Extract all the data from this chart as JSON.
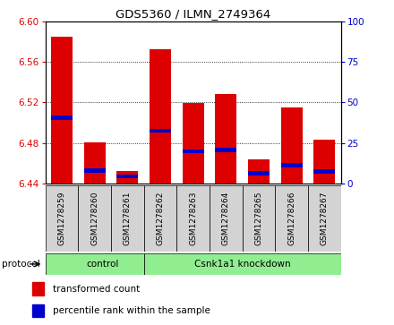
{
  "title": "GDS5360 / ILMN_2749364",
  "samples": [
    "GSM1278259",
    "GSM1278260",
    "GSM1278261",
    "GSM1278262",
    "GSM1278263",
    "GSM1278264",
    "GSM1278265",
    "GSM1278266",
    "GSM1278267"
  ],
  "transformed_counts": [
    6.585,
    6.481,
    6.452,
    6.572,
    6.519,
    6.528,
    6.464,
    6.515,
    6.483
  ],
  "percentile_ranks": [
    6.505,
    6.453,
    6.447,
    6.492,
    6.472,
    6.473,
    6.45,
    6.458,
    6.452
  ],
  "base_value": 6.44,
  "ylim_left": [
    6.44,
    6.6
  ],
  "ylim_right": [
    0,
    100
  ],
  "yticks_left": [
    6.44,
    6.48,
    6.52,
    6.56,
    6.6
  ],
  "yticks_right": [
    0,
    25,
    50,
    75,
    100
  ],
  "bar_color": "#dd0000",
  "pct_color": "#0000cc",
  "background_plot": "#ffffff",
  "background_label": "#d3d3d3",
  "background_proto": "#90ee90",
  "ctrl_count": 3,
  "kd_count": 6,
  "legend_items": [
    {
      "label": "transformed count",
      "color": "#dd0000"
    },
    {
      "label": "percentile rank within the sample",
      "color": "#0000cc"
    }
  ]
}
